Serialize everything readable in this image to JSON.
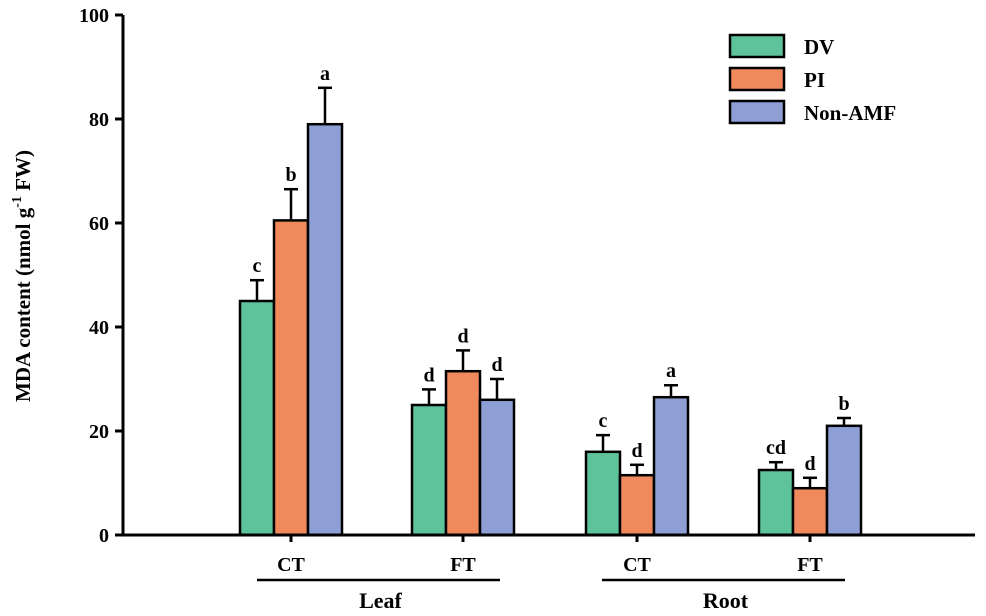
{
  "chart_data": {
    "type": "bar",
    "ylabel_main": "MDA content (nmol g",
    "ylabel_sup": "-1",
    "ylabel_end": " FW)",
    "ylim": [
      0,
      100
    ],
    "yticks": [
      0,
      20,
      40,
      60,
      80,
      100
    ],
    "tick_labels": [
      "0",
      "20",
      "40",
      "60",
      "80",
      "100"
    ],
    "categories": [
      "CT",
      "FT",
      "CT",
      "FT"
    ],
    "groups": [
      {
        "label": "Leaf",
        "categories": [
          0,
          1
        ]
      },
      {
        "label": "Root",
        "categories": [
          2,
          3
        ]
      }
    ],
    "series": [
      {
        "name": "DV",
        "color": "#5ec39a",
        "values": [
          45,
          25,
          16,
          12.5
        ],
        "errors": [
          4,
          3,
          3.2,
          1.5
        ],
        "sig": [
          "c",
          "d",
          "c",
          "cd"
        ]
      },
      {
        "name": "PI",
        "color": "#f08a5d",
        "values": [
          60.5,
          31.5,
          11.5,
          9
        ],
        "errors": [
          6,
          4,
          2,
          2
        ],
        "sig": [
          "b",
          "d",
          "d",
          "d"
        ]
      },
      {
        "name": "Non-AMF",
        "color": "#8d9fd4",
        "values": [
          79,
          26,
          26.5,
          21
        ],
        "errors": [
          7,
          4,
          2.3,
          1.5
        ],
        "sig": [
          "a",
          "d",
          "a",
          "b"
        ]
      }
    ],
    "legend": "top-right"
  }
}
